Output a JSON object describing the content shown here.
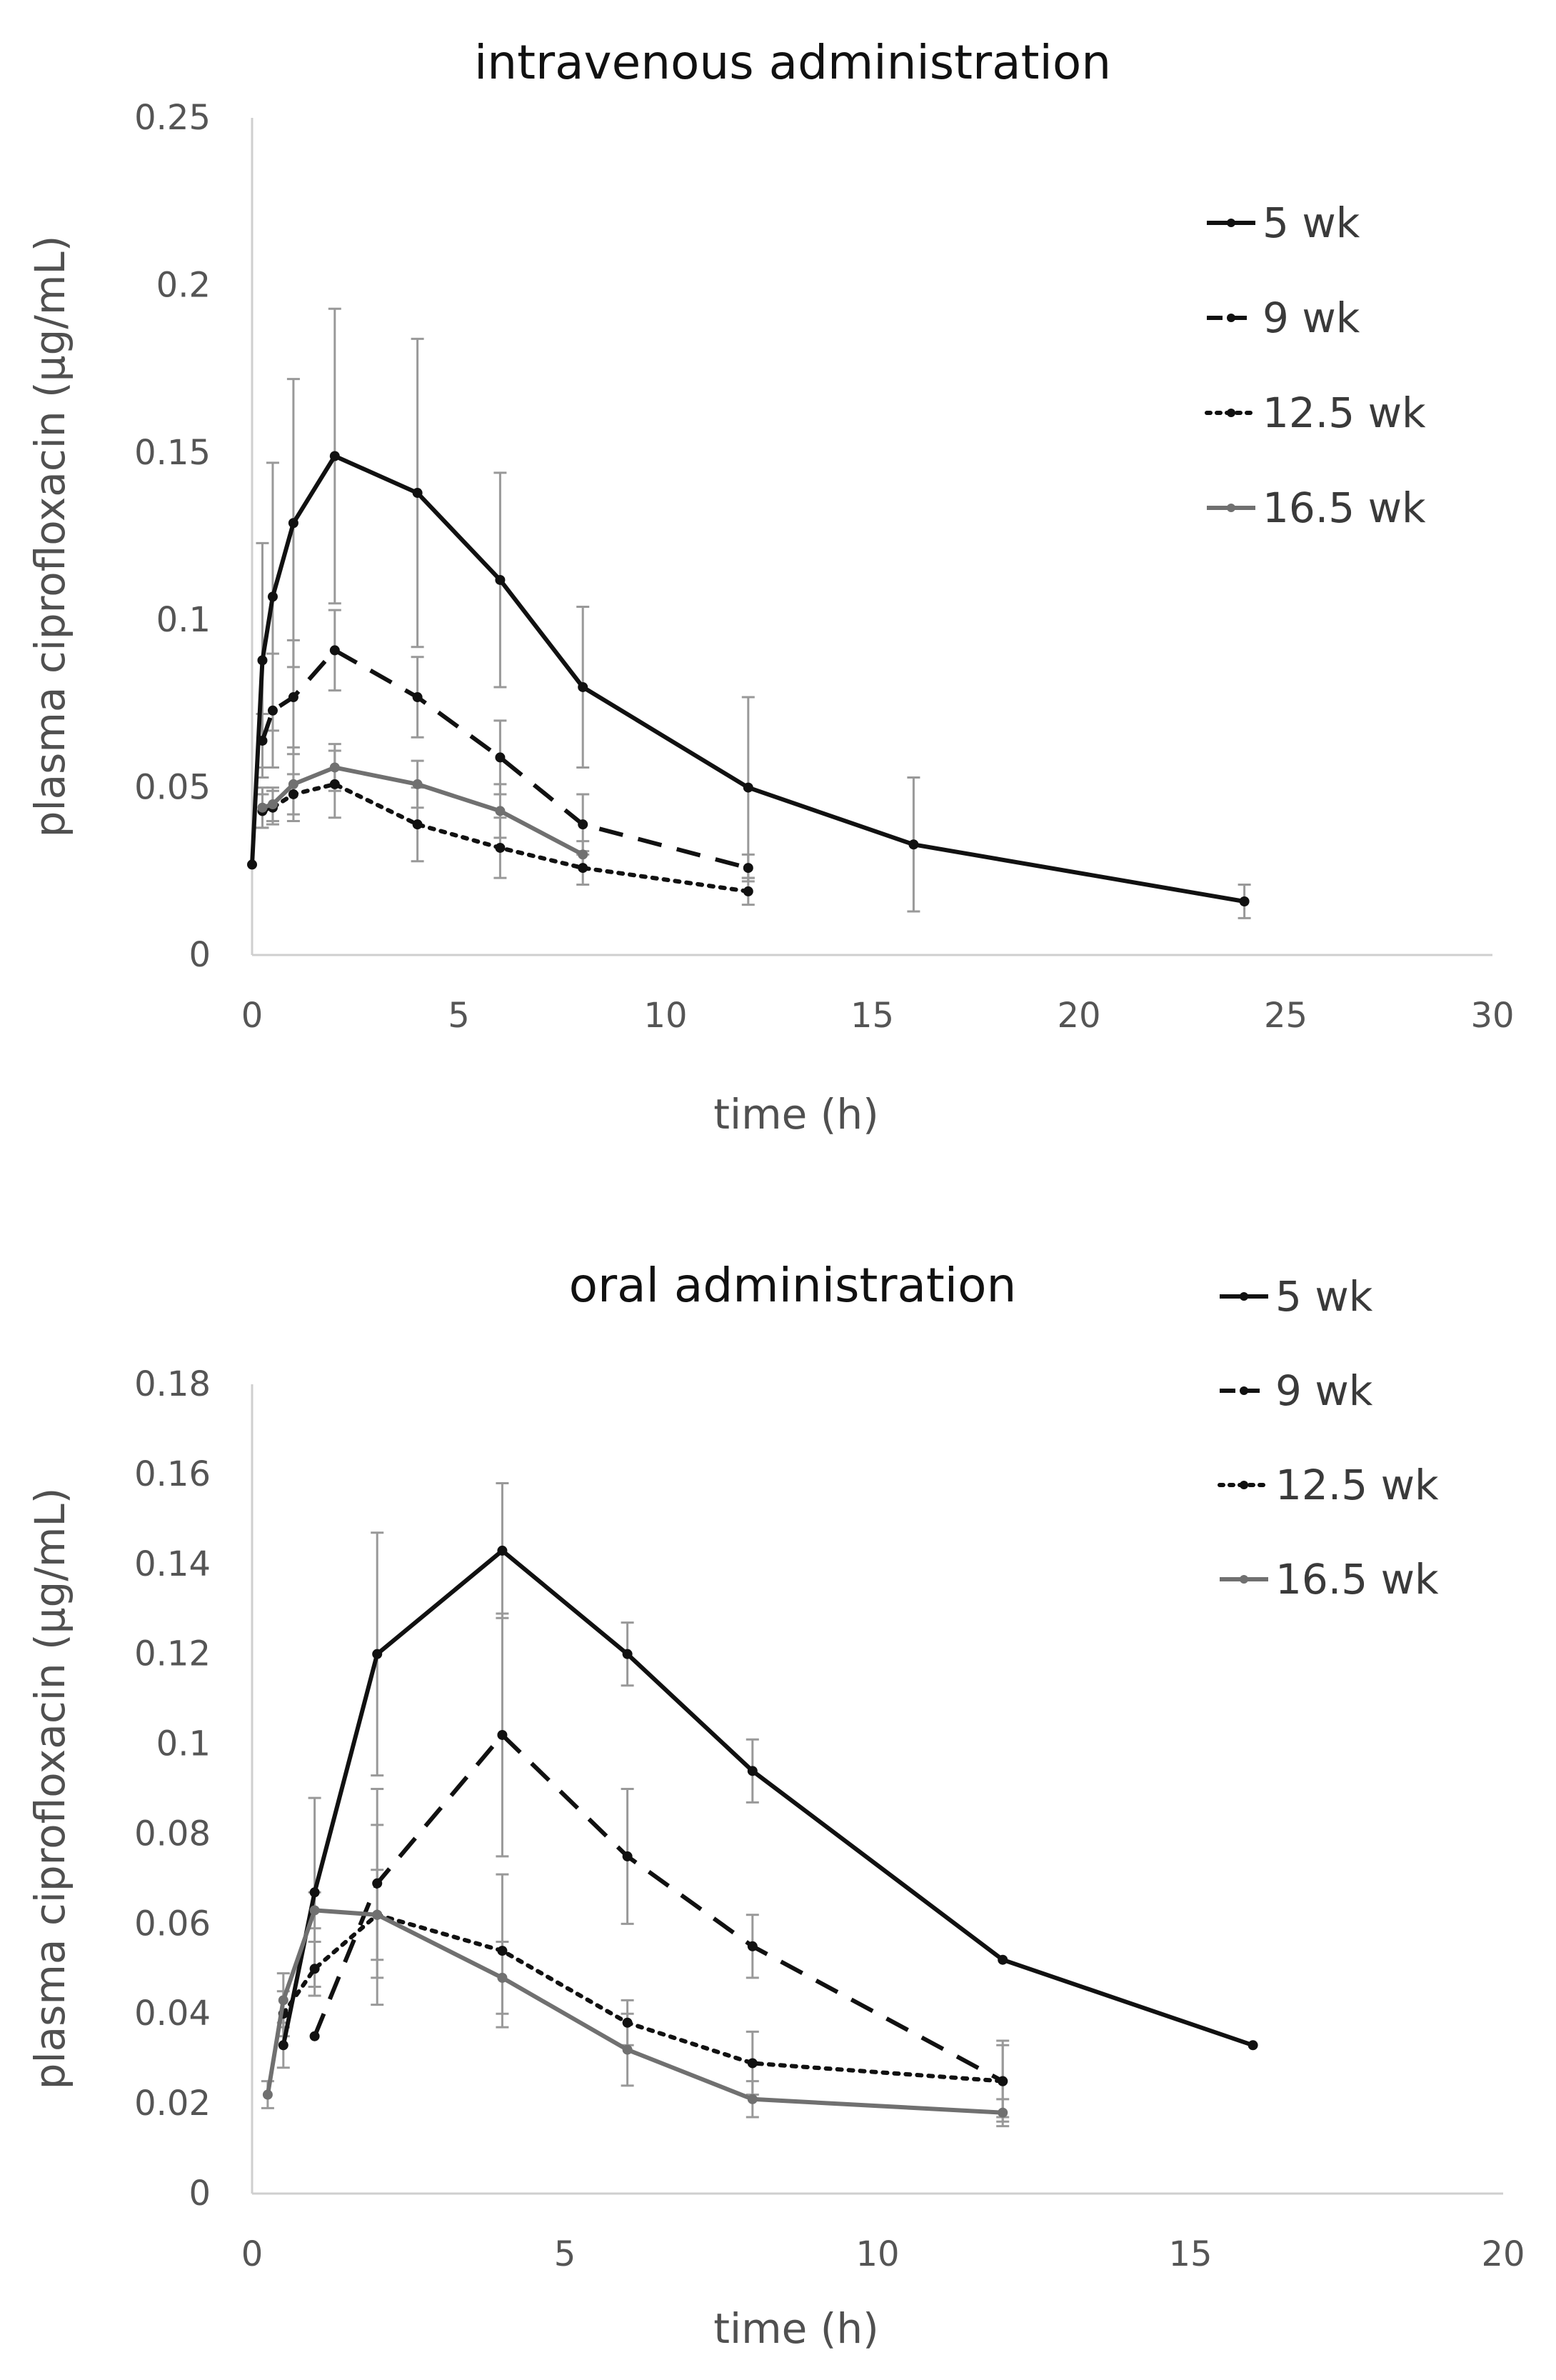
{
  "colors": {
    "black": "#111111",
    "gray": "#707070",
    "error_bar": "#999999",
    "axis": "#cfcfcf",
    "text": "#505050"
  },
  "chart_data": [
    {
      "type": "line",
      "title": "intravenous administration",
      "xlabel": "time (h)",
      "ylabel": "plasma ciprofloxacin (μg/mL)",
      "xlim": [
        0,
        30
      ],
      "ylim": [
        0,
        0.25
      ],
      "xticks": [
        0,
        5,
        10,
        15,
        20,
        25,
        30
      ],
      "yticks": [
        0,
        0.05,
        0.1,
        0.15,
        0.2,
        0.25
      ],
      "xtick_labels": [
        "0",
        "5",
        "10",
        "15",
        "20",
        "25",
        "30"
      ],
      "ytick_labels": [
        "0",
        "0.05",
        "0.1",
        "0.15",
        "0.2",
        "0.25"
      ],
      "legend": [
        "5 wk",
        "9 wk",
        "12.5 wk",
        "16.5 wk"
      ],
      "series": [
        {
          "name": "5 wk",
          "style": "solid",
          "color": "#111111",
          "x": [
            0,
            0.25,
            0.5,
            1,
            2,
            4,
            6,
            8,
            12,
            16,
            24
          ],
          "y": [
            0.027,
            0.088,
            0.107,
            0.129,
            0.149,
            0.138,
            0.112,
            0.08,
            0.05,
            0.033,
            0.016
          ],
          "err": [
            0,
            0.035,
            0.04,
            0.043,
            0.044,
            0.046,
            0.032,
            0.024,
            0.027,
            0.02,
            0.005
          ]
        },
        {
          "name": "9 wk",
          "style": "dashed",
          "color": "#111111",
          "x": [
            0.25,
            0.5,
            1,
            2,
            4,
            6,
            8,
            12
          ],
          "y": [
            0.064,
            0.073,
            0.077,
            0.091,
            0.077,
            0.059,
            0.039,
            0.026
          ],
          "err": [
            0.008,
            0.017,
            0.017,
            0.012,
            0.012,
            0.011,
            0.009,
            0.004
          ]
        },
        {
          "name": "12.5 wk",
          "style": "dotted",
          "color": "#111111",
          "x": [
            0.25,
            0.5,
            1,
            2,
            4,
            6,
            8,
            12
          ],
          "y": [
            0.043,
            0.044,
            0.048,
            0.051,
            0.039,
            0.032,
            0.026,
            0.019
          ],
          "err": [
            0.005,
            0.005,
            0.006,
            0.01,
            0.011,
            0.009,
            0.005,
            0.004
          ]
        },
        {
          "name": "16.5 wk",
          "style": "solid",
          "color": "#707070",
          "x": [
            0.25,
            0.5,
            1,
            2,
            4,
            6,
            8
          ],
          "y": [
            0.044,
            0.045,
            0.051,
            0.056,
            0.051,
            0.043,
            0.03
          ],
          "err": [
            0.006,
            0.005,
            0.011,
            0.007,
            0.007,
            0.008,
            0.004
          ]
        }
      ]
    },
    {
      "type": "line",
      "title": "oral administration",
      "xlabel": "time (h)",
      "ylabel": "plasma ciprofloxacin (μg/mL)",
      "xlim": [
        0,
        20
      ],
      "ylim": [
        0,
        0.18
      ],
      "xticks": [
        0,
        5,
        10,
        15,
        20
      ],
      "yticks": [
        0,
        0.02,
        0.04,
        0.06,
        0.08,
        0.1,
        0.12,
        0.14,
        0.16,
        0.18
      ],
      "xtick_labels": [
        "0",
        "5",
        "10",
        "15",
        "20"
      ],
      "ytick_labels": [
        "0",
        "0.02",
        "0.04",
        "0.06",
        "0.08",
        "0.1",
        "0.12",
        "0.14",
        "0.16",
        "0.18"
      ],
      "legend": [
        "5 wk",
        "9 wk",
        "12.5 wk",
        "16.5 wk"
      ],
      "series": [
        {
          "name": "5 wk",
          "style": "solid",
          "color": "#111111",
          "x": [
            0.5,
            1,
            2,
            4,
            6,
            8,
            12,
            16
          ],
          "y": [
            0.033,
            0.067,
            0.12,
            0.143,
            0.12,
            0.094,
            0.052,
            0.033
          ],
          "err": [
            0.005,
            0.021,
            0.027,
            0.015,
            0.007,
            0.007,
            0,
            0
          ]
        },
        {
          "name": "9 wk",
          "style": "dashed",
          "color": "#111111",
          "x": [
            1,
            2,
            4,
            6,
            8,
            12
          ],
          "y": [
            0.035,
            0.069,
            0.102,
            0.075,
            0.055,
            0.025
          ],
          "err": [
            0,
            0.021,
            0.027,
            0.015,
            0.007,
            0.009
          ]
        },
        {
          "name": "12.5 wk",
          "style": "dotted",
          "color": "#111111",
          "x": [
            0.5,
            1,
            2,
            4,
            6,
            8,
            12
          ],
          "y": [
            0.04,
            0.05,
            0.062,
            0.054,
            0.038,
            0.029,
            0.025
          ],
          "err": [
            0.005,
            0.006,
            0.02,
            0.017,
            0.005,
            0.007,
            0.008
          ]
        },
        {
          "name": "16.5 wk",
          "style": "solid",
          "color": "#707070",
          "x": [
            0.25,
            0.5,
            1,
            2,
            4,
            6,
            8,
            12
          ],
          "y": [
            0.022,
            0.043,
            0.063,
            0.062,
            0.048,
            0.032,
            0.021,
            0.018
          ],
          "err": [
            0.003,
            0.006,
            0.004,
            0.01,
            0.008,
            0.008,
            0.004,
            0.003
          ]
        }
      ]
    }
  ]
}
